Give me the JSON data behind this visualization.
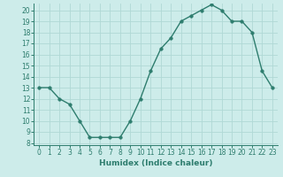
{
  "x": [
    0,
    1,
    2,
    3,
    4,
    5,
    6,
    7,
    8,
    9,
    10,
    11,
    12,
    13,
    14,
    15,
    16,
    17,
    18,
    19,
    20,
    21,
    22,
    23
  ],
  "y": [
    13,
    13,
    12,
    11.5,
    10,
    8.5,
    8.5,
    8.5,
    8.5,
    10,
    12,
    14.5,
    16.5,
    17.5,
    19,
    19.5,
    20,
    20.5,
    20,
    19,
    19,
    18,
    14.5,
    13
  ],
  "line_color": "#2e7d6e",
  "marker_color": "#2e7d6e",
  "bg_color": "#cdecea",
  "grid_color": "#b0d8d5",
  "xlabel": "Humidex (Indice chaleur)",
  "xlim": [
    -0.5,
    23.5
  ],
  "ylim": [
    7.8,
    20.6
  ],
  "yticks": [
    8,
    9,
    10,
    11,
    12,
    13,
    14,
    15,
    16,
    17,
    18,
    19,
    20
  ],
  "xticks": [
    0,
    1,
    2,
    3,
    4,
    5,
    6,
    7,
    8,
    9,
    10,
    11,
    12,
    13,
    14,
    15,
    16,
    17,
    18,
    19,
    20,
    21,
    22,
    23
  ],
  "tick_label_fontsize": 5.5,
  "xlabel_fontsize": 6.5,
  "linewidth": 1.0,
  "markersize": 2.5
}
